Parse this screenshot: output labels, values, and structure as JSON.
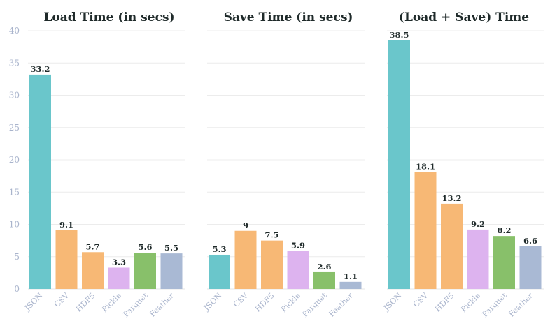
{
  "chart_data": [
    {
      "type": "bar",
      "title": "Load Time (in secs)",
      "categories": [
        "JSON",
        "CSV",
        "HDF5",
        "Pickle",
        "Parquet",
        "Feather"
      ],
      "values": [
        33.2,
        9.1,
        5.7,
        3.3,
        5.6,
        5.5
      ],
      "ylim": [
        0,
        40
      ],
      "yticks": [
        0,
        5,
        10,
        15,
        20,
        25,
        30,
        35,
        40
      ],
      "show_yticks": true,
      "grid": true
    },
    {
      "type": "bar",
      "title": "Save Time (in secs)",
      "categories": [
        "JSON",
        "CSV",
        "HDF5",
        "Pickle",
        "Parquet",
        "Feather"
      ],
      "values": [
        5.3,
        9,
        7.5,
        5.9,
        2.6,
        1.1
      ],
      "ylim": [
        0,
        40
      ],
      "yticks": [
        0,
        5,
        10,
        15,
        20,
        25,
        30,
        35,
        40
      ],
      "show_yticks": false,
      "grid": true
    },
    {
      "type": "bar",
      "title": "(Load + Save) Time",
      "categories": [
        "JSON",
        "CSV",
        "HDF5",
        "Pickle",
        "Parquet",
        "Feather"
      ],
      "values": [
        38.5,
        18.1,
        13.2,
        9.2,
        8.2,
        6.6
      ],
      "ylim": [
        0,
        40
      ],
      "yticks": [
        0,
        5,
        10,
        15,
        20,
        25,
        30,
        35,
        40
      ],
      "show_yticks": false,
      "grid": true
    }
  ],
  "colors": {
    "JSON": "#6ac6cb",
    "CSV": "#f7b875",
    "HDF5": "#f7b875",
    "Pickle": "#ddb3ef",
    "Parquet": "#88c06a",
    "Feather": "#a9b9d4"
  }
}
